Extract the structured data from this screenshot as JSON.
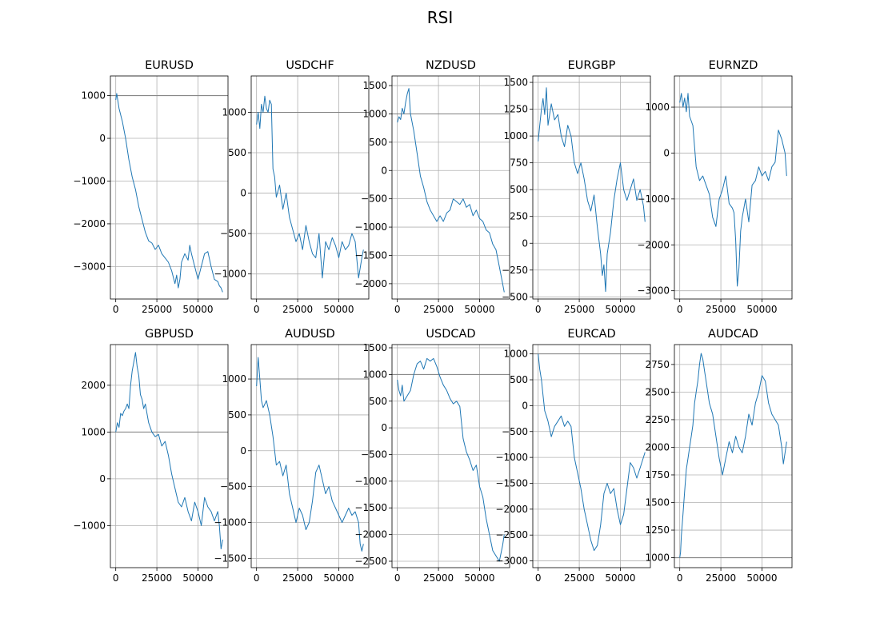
{
  "figure_title": "RSI",
  "chart_data": [
    {
      "type": "line",
      "title": "EURUSD",
      "xlim": [
        -3250,
        68250
      ],
      "ylim": [
        -3760,
        1460
      ],
      "xticks": [
        0,
        25000,
        50000
      ],
      "yticks": [
        1000,
        0,
        -1000,
        -2000,
        -3000
      ],
      "ref_line": 1000,
      "grid": true,
      "series": [
        {
          "x": [
            0,
            600,
            2000,
            4000,
            6000,
            8000,
            10000,
            12000,
            14000,
            16000,
            18000,
            20000,
            22000,
            24000,
            26000,
            28000,
            30000,
            32000,
            34000,
            36000,
            37000,
            38000,
            39000,
            40000,
            42000,
            44000,
            45000,
            46000,
            48000,
            50000,
            52000,
            54000,
            56000,
            58000,
            60000,
            62000,
            63000,
            64000,
            65000
          ],
          "y": [
            900,
            1050,
            700,
            400,
            0,
            -500,
            -900,
            -1200,
            -1600,
            -1900,
            -2200,
            -2400,
            -2450,
            -2600,
            -2500,
            -2700,
            -2800,
            -2900,
            -3100,
            -3400,
            -3200,
            -3500,
            -3300,
            -2900,
            -2700,
            -2850,
            -2500,
            -2700,
            -3000,
            -3300,
            -3000,
            -2700,
            -2650,
            -3000,
            -3300,
            -3350,
            -3450,
            -3500,
            -3600
          ]
        }
      ]
    },
    {
      "type": "line",
      "title": "USDCHF",
      "xlim": [
        -3250,
        68250
      ],
      "ylim": [
        -1310,
        1450
      ],
      "xticks": [
        0,
        25000,
        50000
      ],
      "yticks": [
        1000,
        500,
        0,
        -500,
        -1000
      ],
      "ref_line": 1000,
      "grid": true,
      "series": [
        {
          "x": [
            0,
            1000,
            2000,
            3000,
            4000,
            5000,
            6000,
            7000,
            8000,
            9000,
            10000,
            11000,
            12000,
            14000,
            16000,
            18000,
            20000,
            22000,
            24000,
            26000,
            28000,
            30000,
            32000,
            34000,
            36000,
            38000,
            40000,
            42000,
            44000,
            46000,
            48000,
            50000,
            52000,
            54000,
            56000,
            58000,
            60000,
            62000,
            64000,
            65000
          ],
          "y": [
            850,
            1000,
            800,
            1100,
            1000,
            1200,
            1050,
            1000,
            1150,
            1100,
            300,
            200,
            -50,
            100,
            -200,
            0,
            -300,
            -450,
            -600,
            -500,
            -700,
            -400,
            -600,
            -750,
            -800,
            -500,
            -1050,
            -600,
            -700,
            -550,
            -650,
            -800,
            -600,
            -700,
            -650,
            -500,
            -600,
            -1050,
            -800,
            -700
          ]
        }
      ]
    },
    {
      "type": "line",
      "title": "NZDUSD",
      "xlim": [
        -3250,
        68250
      ],
      "ylim": [
        -2270,
        1670
      ],
      "xticks": [
        0,
        25000,
        50000
      ],
      "yticks": [
        1500,
        1000,
        500,
        0,
        -500,
        -1000,
        -1500,
        -2000
      ],
      "ref_line": 1000,
      "grid": true,
      "series": [
        {
          "x": [
            0,
            1000,
            2000,
            3000,
            4000,
            5000,
            6000,
            7000,
            8000,
            10000,
            12000,
            14000,
            16000,
            18000,
            20000,
            22000,
            24000,
            26000,
            28000,
            30000,
            32000,
            34000,
            36000,
            38000,
            40000,
            42000,
            44000,
            46000,
            48000,
            50000,
            52000,
            54000,
            56000,
            58000,
            60000,
            62000,
            64000,
            65000
          ],
          "y": [
            850,
            950,
            900,
            1100,
            1000,
            1200,
            1350,
            1450,
            1000,
            700,
            300,
            -100,
            -300,
            -550,
            -700,
            -800,
            -900,
            -800,
            -900,
            -750,
            -700,
            -500,
            -550,
            -600,
            -500,
            -650,
            -600,
            -800,
            -700,
            -850,
            -900,
            -1050,
            -1100,
            -1300,
            -1400,
            -1700,
            -2000,
            -2150
          ]
        }
      ]
    },
    {
      "type": "line",
      "title": "EURGBP",
      "xlim": [
        -3250,
        68250
      ],
      "ylim": [
        -520,
        1560
      ],
      "xticks": [
        0,
        25000,
        50000
      ],
      "yticks": [
        1500,
        1250,
        1000,
        750,
        500,
        250,
        0,
        -250,
        -500
      ],
      "ref_line": 1000,
      "grid": true,
      "series": [
        {
          "x": [
            0,
            1000,
            2000,
            3000,
            4000,
            5000,
            6000,
            8000,
            10000,
            12000,
            14000,
            16000,
            18000,
            20000,
            22000,
            24000,
            26000,
            28000,
            30000,
            32000,
            34000,
            36000,
            38000,
            39000,
            40000,
            41000,
            42000,
            44000,
            46000,
            48000,
            50000,
            52000,
            54000,
            56000,
            58000,
            60000,
            62000,
            64000,
            65000
          ],
          "y": [
            950,
            1100,
            1250,
            1350,
            1200,
            1450,
            1100,
            1300,
            1150,
            1200,
            1000,
            900,
            1100,
            1000,
            750,
            650,
            750,
            600,
            400,
            300,
            450,
            150,
            -100,
            -300,
            -200,
            -450,
            -100,
            100,
            400,
            600,
            750,
            500,
            400,
            500,
            600,
            400,
            500,
            350,
            200
          ]
        }
      ]
    },
    {
      "type": "line",
      "title": "EURNZD",
      "xlim": [
        -3250,
        68250
      ],
      "ylim": [
        -3180,
        1680
      ],
      "xticks": [
        0,
        25000,
        50000
      ],
      "yticks": [
        1000,
        0,
        -1000,
        -2000,
        -3000
      ],
      "ref_line": 1000,
      "grid": true,
      "series": [
        {
          "x": [
            0,
            1000,
            2000,
            3000,
            4000,
            5000,
            6000,
            8000,
            10000,
            12000,
            14000,
            16000,
            18000,
            20000,
            22000,
            24000,
            26000,
            28000,
            30000,
            32000,
            33000,
            34000,
            35000,
            36000,
            37000,
            38000,
            40000,
            42000,
            44000,
            46000,
            48000,
            50000,
            52000,
            54000,
            56000,
            58000,
            60000,
            62000,
            64000,
            65000
          ],
          "y": [
            1100,
            1300,
            1000,
            1200,
            900,
            1300,
            800,
            600,
            -300,
            -600,
            -500,
            -700,
            -900,
            -1400,
            -1600,
            -1000,
            -800,
            -500,
            -1100,
            -1200,
            -1300,
            -1900,
            -2900,
            -2500,
            -1700,
            -1400,
            -1000,
            -1500,
            -700,
            -600,
            -300,
            -500,
            -400,
            -600,
            -300,
            -200,
            500,
            300,
            0,
            -500
          ]
        }
      ]
    },
    {
      "type": "line",
      "title": "GBPUSD",
      "xlim": [
        -3250,
        68250
      ],
      "ylim": [
        -1900,
        2870
      ],
      "xticks": [
        0,
        25000,
        50000
      ],
      "yticks": [
        2000,
        1000,
        0,
        -1000
      ],
      "ref_line": 1000,
      "grid": true,
      "series": [
        {
          "x": [
            0,
            1000,
            2000,
            3000,
            4000,
            5000,
            6000,
            7000,
            8000,
            9000,
            10000,
            11000,
            12000,
            13000,
            14000,
            15000,
            16000,
            17000,
            18000,
            19000,
            20000,
            22000,
            24000,
            26000,
            28000,
            30000,
            32000,
            34000,
            36000,
            38000,
            40000,
            42000,
            44000,
            46000,
            48000,
            50000,
            52000,
            54000,
            56000,
            58000,
            60000,
            62000,
            63000,
            64000,
            65000
          ],
          "y": [
            1000,
            1200,
            1100,
            1400,
            1350,
            1450,
            1500,
            1600,
            1500,
            2000,
            2300,
            2500,
            2700,
            2400,
            2200,
            1800,
            1700,
            1500,
            1600,
            1400,
            1200,
            1000,
            900,
            950,
            700,
            800,
            500,
            100,
            -200,
            -500,
            -600,
            -400,
            -700,
            -900,
            -500,
            -700,
            -1000,
            -400,
            -600,
            -700,
            -900,
            -700,
            -1000,
            -1500,
            -1300
          ]
        }
      ]
    },
    {
      "type": "line",
      "title": "AUDUSD",
      "xlim": [
        -3250,
        68250
      ],
      "ylim": [
        -1630,
        1480
      ],
      "xticks": [
        0,
        25000,
        50000
      ],
      "yticks": [
        1000,
        500,
        0,
        -500,
        -1000,
        -1500
      ],
      "ref_line": 1000,
      "grid": true,
      "series": [
        {
          "x": [
            0,
            1000,
            2000,
            3000,
            4000,
            5000,
            6000,
            8000,
            10000,
            12000,
            14000,
            16000,
            18000,
            20000,
            22000,
            24000,
            26000,
            28000,
            30000,
            32000,
            34000,
            36000,
            38000,
            40000,
            42000,
            44000,
            46000,
            48000,
            50000,
            52000,
            54000,
            56000,
            58000,
            60000,
            62000,
            63000,
            64000,
            65000
          ],
          "y": [
            900,
            1300,
            1000,
            700,
            600,
            650,
            700,
            500,
            200,
            -200,
            -150,
            -350,
            -200,
            -600,
            -800,
            -1000,
            -800,
            -900,
            -1100,
            -1000,
            -700,
            -300,
            -200,
            -400,
            -600,
            -500,
            -700,
            -800,
            -900,
            -1000,
            -900,
            -800,
            -900,
            -850,
            -1000,
            -1300,
            -1400,
            -1300
          ]
        }
      ]
    },
    {
      "type": "line",
      "title": "USDCAD",
      "xlim": [
        -3250,
        68250
      ],
      "ylim": [
        -2620,
        1560
      ],
      "xticks": [
        0,
        25000,
        50000
      ],
      "yticks": [
        1500,
        1000,
        500,
        0,
        -500,
        -1000,
        -1500,
        -2000,
        -2500
      ],
      "ref_line": 1000,
      "grid": true,
      "series": [
        {
          "x": [
            0,
            1000,
            2000,
            3000,
            4000,
            5000,
            6000,
            8000,
            10000,
            12000,
            14000,
            16000,
            18000,
            20000,
            22000,
            24000,
            26000,
            28000,
            30000,
            32000,
            34000,
            36000,
            38000,
            40000,
            42000,
            44000,
            46000,
            48000,
            50000,
            52000,
            54000,
            56000,
            58000,
            60000,
            62000,
            64000,
            65000
          ],
          "y": [
            900,
            700,
            600,
            800,
            500,
            550,
            600,
            700,
            1000,
            1200,
            1250,
            1100,
            1300,
            1250,
            1300,
            1150,
            950,
            800,
            700,
            550,
            450,
            500,
            400,
            -200,
            -450,
            -600,
            -800,
            -700,
            -1100,
            -1300,
            -1700,
            -2000,
            -2300,
            -2400,
            -2500,
            -2200,
            -2000
          ]
        }
      ]
    },
    {
      "type": "line",
      "title": "EURCAD",
      "xlim": [
        -3250,
        68250
      ],
      "ylim": [
        -3130,
        1180
      ],
      "xticks": [
        0,
        25000,
        50000
      ],
      "yticks": [
        1000,
        500,
        0,
        -500,
        -1000,
        -1500,
        -2000,
        -2500,
        -3000
      ],
      "ref_line": 1000,
      "grid": true,
      "series": [
        {
          "x": [
            0,
            1000,
            2000,
            3000,
            4000,
            5000,
            6000,
            8000,
            10000,
            12000,
            14000,
            16000,
            18000,
            20000,
            22000,
            24000,
            26000,
            28000,
            30000,
            32000,
            34000,
            36000,
            38000,
            40000,
            42000,
            44000,
            46000,
            48000,
            50000,
            52000,
            54000,
            56000,
            58000,
            60000,
            62000,
            64000,
            65000
          ],
          "y": [
            1000,
            700,
            500,
            200,
            -100,
            -200,
            -300,
            -600,
            -400,
            -300,
            -200,
            -400,
            -300,
            -400,
            -1000,
            -1300,
            -1600,
            -2000,
            -2300,
            -2600,
            -2800,
            -2700,
            -2300,
            -1700,
            -1500,
            -1700,
            -1600,
            -2000,
            -2300,
            -2100,
            -1600,
            -1100,
            -1200,
            -1400,
            -1200,
            -1000,
            -900
          ]
        }
      ]
    },
    {
      "type": "line",
      "title": "AUDCAD",
      "xlim": [
        -3250,
        68250
      ],
      "ylim": [
        910,
        2930
      ],
      "xticks": [
        0,
        25000,
        50000
      ],
      "yticks": [
        2750,
        2500,
        2250,
        2000,
        1750,
        1500,
        1250,
        1000
      ],
      "ref_line": 1000,
      "grid": true,
      "series": [
        {
          "x": [
            0,
            500,
            1000,
            2000,
            3000,
            4000,
            5000,
            6000,
            7000,
            8000,
            9000,
            10000,
            11000,
            12000,
            13000,
            14000,
            15000,
            16000,
            18000,
            20000,
            22000,
            24000,
            26000,
            28000,
            30000,
            32000,
            34000,
            36000,
            38000,
            40000,
            42000,
            44000,
            46000,
            48000,
            50000,
            52000,
            54000,
            56000,
            58000,
            60000,
            62000,
            63000,
            64000,
            65000
          ],
          "y": [
            1000,
            1050,
            1200,
            1400,
            1600,
            1800,
            1900,
            2000,
            2100,
            2200,
            2400,
            2500,
            2600,
            2750,
            2850,
            2800,
            2700,
            2600,
            2400,
            2300,
            2100,
            1900,
            1750,
            1900,
            2050,
            1950,
            2100,
            2000,
            1950,
            2100,
            2300,
            2200,
            2400,
            2500,
            2650,
            2600,
            2400,
            2300,
            2250,
            2200,
            2000,
            1850,
            1950,
            2050
          ]
        }
      ]
    }
  ]
}
